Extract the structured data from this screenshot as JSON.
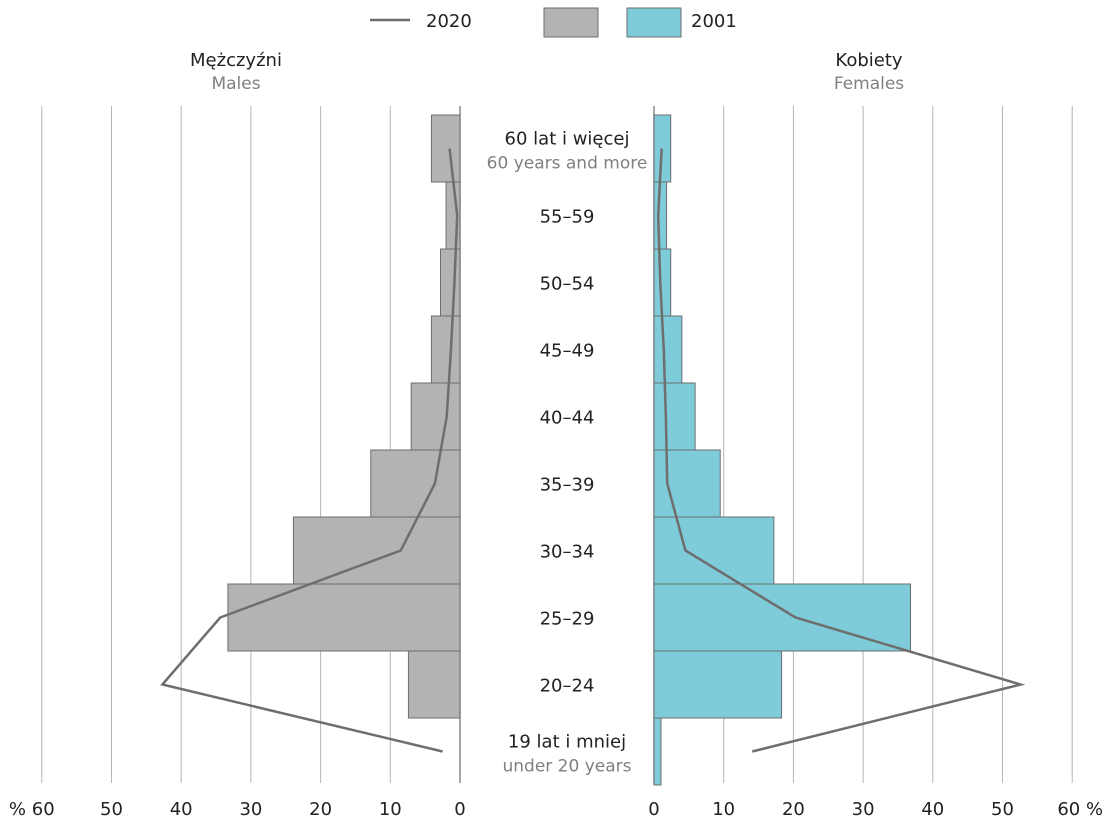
{
  "chart_data": {
    "type": "bar",
    "layout": "back-to-back population pyramid",
    "legend": {
      "position": "top-center",
      "items": [
        {
          "label": "2020",
          "symbol": "line",
          "color": "#6e6e6e"
        },
        {
          "label": "",
          "symbol": "box",
          "color": "#b3b3b3"
        },
        {
          "label": "2001",
          "symbol": "box",
          "color": "#7ecbd9"
        }
      ]
    },
    "left_panel": {
      "title": "Mężczyźni",
      "subtitle": "Males"
    },
    "right_panel": {
      "title": "Kobiety",
      "subtitle": "Females"
    },
    "categories": [
      {
        "label": "60 lat i więcej",
        "sublabel": "60 years and more"
      },
      {
        "label": "55–59",
        "sublabel": ""
      },
      {
        "label": "50–54",
        "sublabel": ""
      },
      {
        "label": "45–49",
        "sublabel": ""
      },
      {
        "label": "40–44",
        "sublabel": ""
      },
      {
        "label": "35–39",
        "sublabel": ""
      },
      {
        "label": "30–34",
        "sublabel": ""
      },
      {
        "label": "25–29",
        "sublabel": ""
      },
      {
        "label": "20–24",
        "sublabel": ""
      },
      {
        "label": "19 lat i mniej",
        "sublabel": "under 20 years"
      }
    ],
    "x_ticks": {
      "left": [
        "% 60",
        "50",
        "40",
        "30",
        "20",
        "10",
        "0"
      ],
      "right": [
        "0",
        "10",
        "20",
        "30",
        "40",
        "50",
        "60 %"
      ]
    },
    "xlim": [
      0,
      60
    ],
    "grid": true,
    "series": [
      {
        "name": "2001",
        "panel": "males",
        "kind": "bars",
        "color": "#b3b3b3",
        "values": [
          4.1,
          2.0,
          2.8,
          4.1,
          7.0,
          12.8,
          23.9,
          33.3,
          7.4,
          0.0
        ]
      },
      {
        "name": "2001",
        "panel": "females",
        "kind": "bars",
        "color": "#7ecbd9",
        "values": [
          2.4,
          1.8,
          2.4,
          4.0,
          5.9,
          9.5,
          17.2,
          36.8,
          18.3,
          1.0
        ]
      },
      {
        "name": "2020",
        "panel": "males",
        "kind": "line",
        "color": "#6e6e6e",
        "values": [
          1.5,
          0.4,
          0.8,
          1.3,
          1.9,
          3.6,
          8.5,
          34.4,
          42.7,
          2.5
        ]
      },
      {
        "name": "2020",
        "panel": "females",
        "kind": "line",
        "color": "#6e6e6e",
        "values": [
          1.1,
          0.6,
          0.9,
          1.4,
          1.7,
          1.9,
          4.5,
          20.3,
          52.6,
          14.1
        ]
      }
    ]
  }
}
